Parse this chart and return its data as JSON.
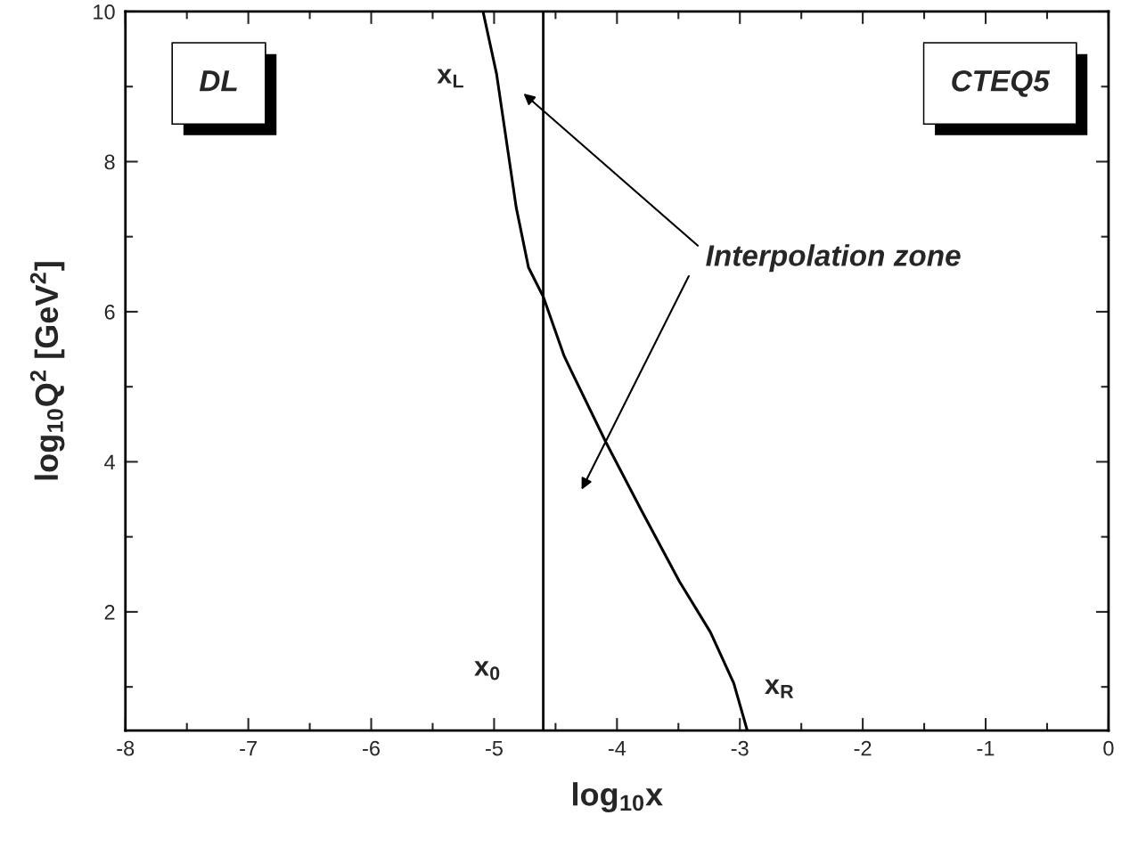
{
  "chart_data": {
    "type": "line",
    "xlabel": "log$_{10}$x",
    "ylabel": "log$_{10}$Q$^{2}$ [GeV$^{2}$]",
    "xlim": [
      -8,
      0
    ],
    "ylim": [
      0.42,
      10
    ],
    "xticks": [
      -8,
      {
        "value": -7.5,
        "label": null
      },
      -7,
      {
        "value": -6.5,
        "label": null
      },
      -6,
      {
        "value": -5.5,
        "label": null
      },
      -5,
      {
        "value": -4.5,
        "label": null
      },
      -4,
      {
        "value": -3.5,
        "label": null
      },
      -3,
      {
        "value": -2.5,
        "label": null
      },
      -2,
      {
        "value": -1.5,
        "label": null
      },
      -1,
      {
        "value": -0.5,
        "label": null
      },
      0
    ],
    "yticks": [
      {
        "value": 1,
        "label": null
      },
      2,
      {
        "value": 3,
        "label": null
      },
      4,
      {
        "value": 5,
        "label": null
      },
      6,
      {
        "value": 7,
        "label": null
      },
      8,
      {
        "value": 9,
        "label": null
      },
      10
    ],
    "grid": false,
    "legend": false,
    "series": [
      {
        "color": "#000000",
        "x": [
          -5.09,
          -4.98,
          -4.89,
          -4.82,
          -4.72,
          -4.6,
          -4.43,
          -4.36,
          -4.09,
          -3.8,
          -3.49,
          -3.24,
          -3.05,
          -2.94
        ],
        "values": [
          10.0,
          9.17,
          8.17,
          7.39,
          6.59,
          6.2,
          5.41,
          5.17,
          4.26,
          3.35,
          2.4,
          1.73,
          1.05,
          0.42
        ]
      }
    ],
    "ref_lines": [
      {
        "axis": "x",
        "value": -4.6,
        "label": "x$_{0}$",
        "color": "#000000"
      }
    ],
    "annotations": [
      "DL",
      "CTEQ5",
      "Interpolation zone",
      {
        "text": "x$_{L}$",
        "x": -4.98,
        "y": 9.17
      },
      {
        "text": "x$_{R}$",
        "x": -3.05,
        "y": 1.05
      }
    ]
  }
}
